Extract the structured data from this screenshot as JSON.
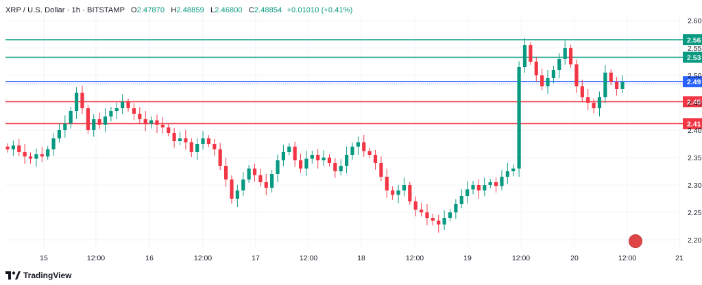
{
  "header": {
    "symbol": "XRP / U.S. Dollar · 1h · BITSTAMP",
    "open_label": "O",
    "open": "2.47870",
    "high_label": "H",
    "high": "2.48859",
    "low_label": "L",
    "low": "2.46800",
    "close_label": "C",
    "close": "2.48854",
    "change": "+0.01010 (+0.41%)"
  },
  "footer": {
    "brand": "TradingView"
  },
  "colors": {
    "up": "#089981",
    "down": "#f23645",
    "resistance": "#089981",
    "current": "#2962ff",
    "support": "#f23645"
  },
  "chart_data": {
    "type": "candlestick",
    "ylim": [
      2.18,
      2.62
    ],
    "y_ticks": [
      "2.20",
      "2.25",
      "2.30",
      "2.35",
      "2.40",
      "2.45",
      "2.50",
      "2.55",
      "2.60"
    ],
    "x_ticks": [
      "15",
      "12:00",
      "16",
      "12:00",
      "17",
      "12:00",
      "18",
      "12:00",
      "19",
      "12:00",
      "20",
      "12:00",
      "21"
    ],
    "levels": [
      {
        "label": "2.56",
        "value": 2.565,
        "color": "#089981"
      },
      {
        "label": "2.53",
        "value": 2.533,
        "color": "#089981"
      },
      {
        "label": "2.49",
        "value": 2.4885,
        "color": "#2962ff"
      },
      {
        "label": "2.45",
        "value": 2.452,
        "color": "#f23645"
      },
      {
        "label": "2.41",
        "value": 2.412,
        "color": "#f23645"
      }
    ],
    "close_series": [
      2.365,
      2.372,
      2.36,
      2.352,
      2.348,
      2.356,
      2.352,
      2.365,
      2.385,
      2.4,
      2.412,
      2.435,
      2.468,
      2.44,
      2.4,
      2.42,
      2.41,
      2.425,
      2.435,
      2.44,
      2.452,
      2.44,
      2.43,
      2.42,
      2.412,
      2.418,
      2.41,
      2.405,
      2.395,
      2.38,
      2.385,
      2.378,
      2.36,
      2.375,
      2.385,
      2.375,
      2.365,
      2.335,
      2.31,
      2.275,
      2.29,
      2.31,
      2.33,
      2.318,
      2.305,
      2.295,
      2.32,
      2.345,
      2.36,
      2.37,
      2.345,
      2.33,
      2.348,
      2.355,
      2.345,
      2.35,
      2.34,
      2.325,
      2.335,
      2.355,
      2.37,
      2.378,
      2.362,
      2.355,
      2.34,
      2.315,
      2.29,
      2.282,
      2.29,
      2.3,
      2.27,
      2.255,
      2.25,
      2.24,
      2.235,
      2.228,
      2.24,
      2.25,
      2.265,
      2.28,
      2.292,
      2.3,
      2.29,
      2.3,
      2.305,
      2.298,
      2.315,
      2.325,
      2.33,
      2.515,
      2.555,
      2.525,
      2.5,
      2.48,
      2.495,
      2.51,
      2.53,
      2.55,
      2.52,
      2.48,
      2.46,
      2.45,
      2.44,
      2.46,
      2.505,
      2.488,
      2.475,
      2.488
    ]
  }
}
